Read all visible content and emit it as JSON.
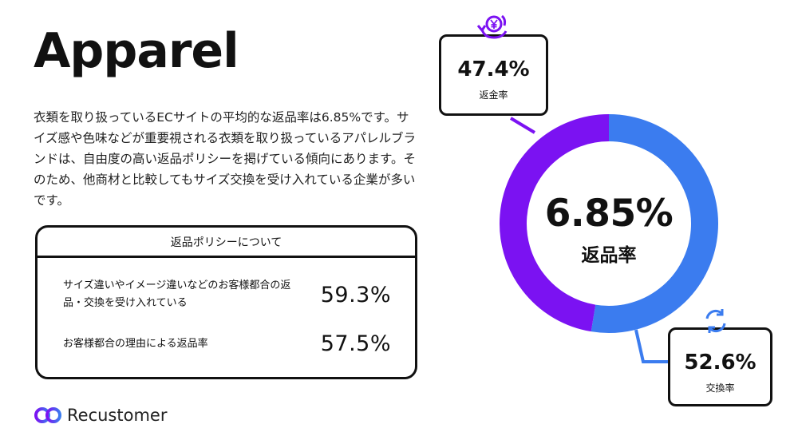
{
  "page": {
    "title": "Apparel",
    "description": "衣類を取り扱っているECサイトの平均的な返品率は6.85%です。サイズ感や色味などが重要視される衣類を取り扱っているアパレルブランドは、自由度の高い返品ポリシーを掲げている傾向にあります。そのため、他商材と比較してもサイズ交換を受け入れている企業が多いです。"
  },
  "policy": {
    "heading": "返品ポリシーについて",
    "rows": [
      {
        "label": "サイズ違いやイメージ違いなどのお客様都合の返品・交換を受け入れている",
        "value": "59.3%"
      },
      {
        "label": "お客様都合の理由による返品率",
        "value": "57.5%"
      }
    ]
  },
  "brand": {
    "name": "Recustomer"
  },
  "chart_data": {
    "type": "pie",
    "center_value": "6.85%",
    "center_label": "返品率",
    "categories": [
      "返金率",
      "交換率"
    ],
    "values": [
      47.4,
      52.6
    ],
    "value_labels": [
      "47.4%",
      "52.6%"
    ],
    "colors": [
      "#7b12f2",
      "#3b7cef"
    ]
  },
  "colors": {
    "refund": "#7b12f2",
    "exchange": "#3b7cef",
    "text": "#111111"
  },
  "icons": {
    "refund": "yen-refund-icon",
    "exchange": "exchange-arrows-icon",
    "brand": "recustomer-logo-icon"
  }
}
